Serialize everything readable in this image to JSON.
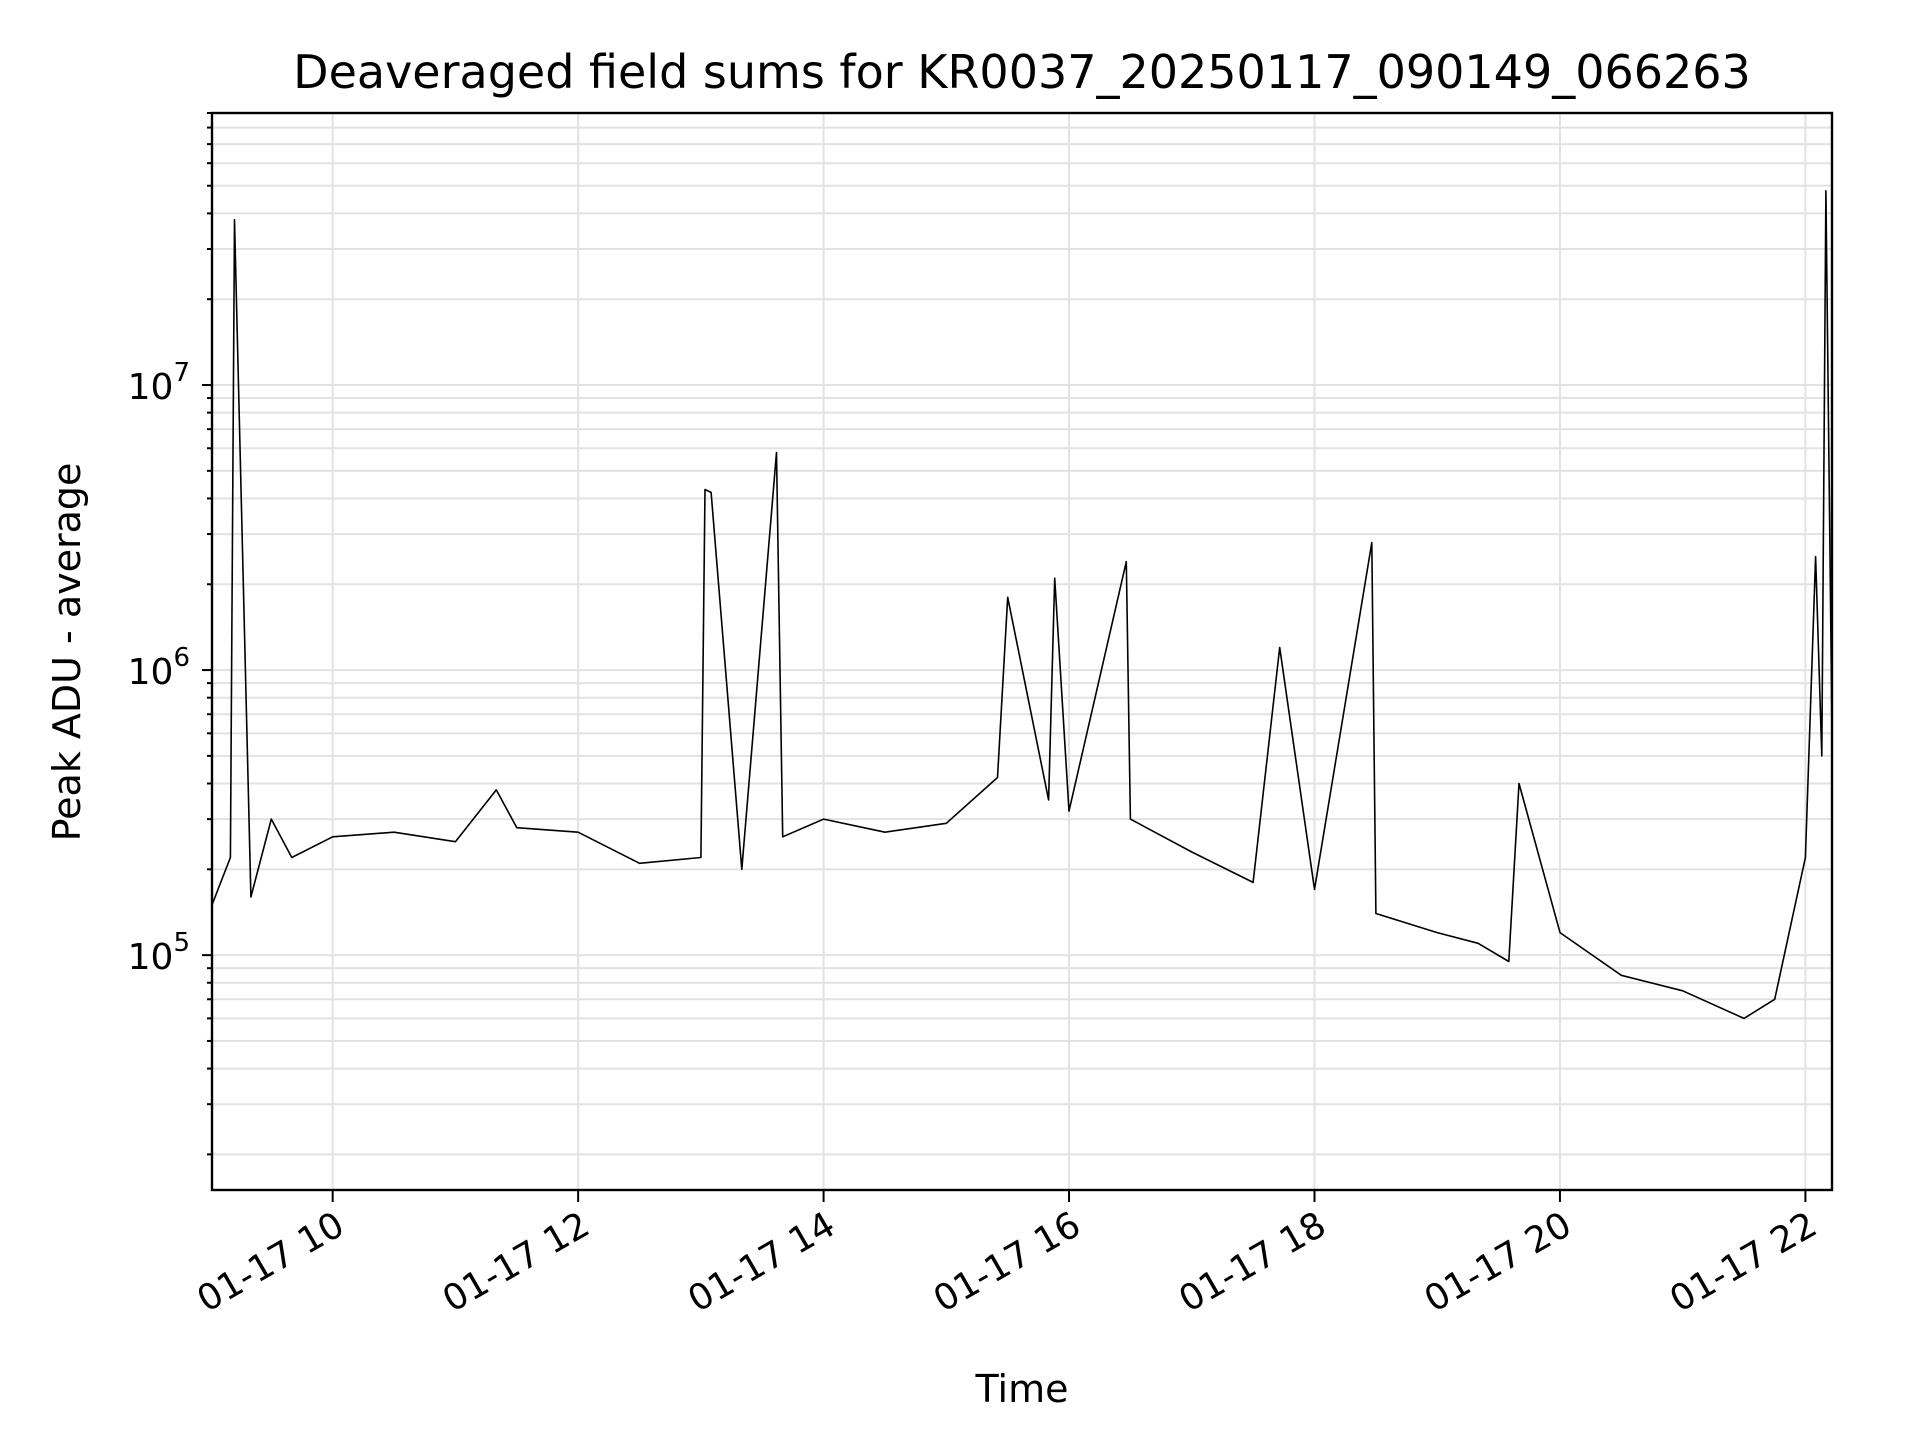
{
  "chart_data": {
    "type": "line",
    "title": "Deaveraged field sums for KR0037_20250117_090149_066263",
    "xlabel": "Time",
    "ylabel": "Peak ADU - average",
    "yscale": "log",
    "ylim": [
      15000,
      90000000
    ],
    "xlim": [
      "01-17 09:01",
      "01-17 22:13"
    ],
    "grid": true,
    "legend": "none",
    "line_color": "#000000",
    "x_ticks": [
      "01-17 10",
      "01-17 12",
      "01-17 14",
      "01-17 16",
      "01-17 18",
      "01-17 20",
      "01-17 22"
    ],
    "y_ticks": [
      {
        "base": "10",
        "exp": "5",
        "value": 100000
      },
      {
        "base": "10",
        "exp": "6",
        "value": 1000000
      },
      {
        "base": "10",
        "exp": "7",
        "value": 10000000
      }
    ],
    "series": [
      {
        "x": [
          "01-17 09:01",
          "01-17 09:10",
          "01-17 09:12",
          "01-17 09:20",
          "01-17 09:30",
          "01-17 09:40",
          "01-17 10:00",
          "01-17 10:30",
          "01-17 11:00",
          "01-17 11:20",
          "01-17 11:30",
          "01-17 12:00",
          "01-17 12:30",
          "01-17 13:00",
          "01-17 13:02",
          "01-17 13:05",
          "01-17 13:20",
          "01-17 13:37",
          "01-17 13:40",
          "01-17 14:00",
          "01-17 14:30",
          "01-17 15:00",
          "01-17 15:25",
          "01-17 15:30",
          "01-17 15:50",
          "01-17 15:53",
          "01-17 16:00",
          "01-17 16:28",
          "01-17 16:30",
          "01-17 17:00",
          "01-17 17:30",
          "01-17 17:43",
          "01-17 18:00",
          "01-17 18:28",
          "01-17 18:30",
          "01-17 19:00",
          "01-17 19:20",
          "01-17 19:35",
          "01-17 19:40",
          "01-17 20:00",
          "01-17 20:30",
          "01-17 21:00",
          "01-17 21:30",
          "01-17 21:45",
          "01-17 22:00",
          "01-17 22:05",
          "01-17 22:08",
          "01-17 22:10",
          "01-17 22:13"
        ],
        "values": [
          150000,
          220000,
          38000000,
          160000,
          300000,
          220000,
          260000,
          270000,
          250000,
          380000,
          280000,
          270000,
          210000,
          220000,
          4300000,
          4200000,
          200000,
          5800000,
          260000,
          300000,
          270000,
          290000,
          420000,
          1800000,
          350000,
          2100000,
          320000,
          2400000,
          300000,
          230000,
          180000,
          1200000,
          170000,
          2800000,
          140000,
          120000,
          110000,
          95000,
          400000,
          120000,
          85000,
          75000,
          60000,
          70000,
          220000,
          2500000,
          500000,
          48000000,
          600000
        ]
      }
    ]
  }
}
